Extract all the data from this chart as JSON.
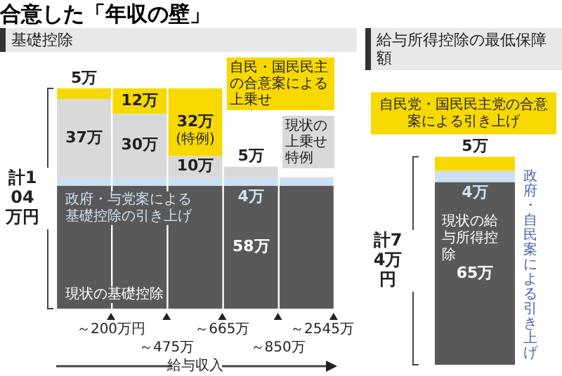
{
  "chart_data": [
    {
      "type": "bar",
      "title": "合意した「年収の壁」",
      "subtitle": "基礎控除",
      "categories": [
        "～200万円",
        "～475万",
        "～665万",
        "～850万",
        "～2545万"
      ],
      "stacked": true,
      "xlabel": "給与収入",
      "tick_labels": "x",
      "series": [
        {
          "name": "現状の基礎控除",
          "color": "#595959",
          "values": [
            58,
            58,
            58,
            58,
            58
          ],
          "value_labels": [
            null,
            null,
            null,
            "58万",
            null
          ]
        },
        {
          "name": "政府・与党案による基礎控除の引き上げ",
          "color": "#cde0f2",
          "values": [
            4,
            4,
            4,
            4,
            4
          ],
          "value_labels": [
            null,
            null,
            null,
            "4万",
            null
          ]
        },
        {
          "name": "現状の上乗せ特例",
          "color": "#d9d9d9",
          "values": [
            37,
            30,
            10,
            5,
            null
          ],
          "value_labels": [
            "37万",
            "30万",
            "10万",
            "5万",
            null
          ]
        },
        {
          "name": "自民・国民民主の合意案による上乗せ",
          "color": "#f7d900",
          "values": [
            5,
            12,
            32,
            null,
            null
          ],
          "value_labels": [
            "5万",
            "12万",
            "32万",
            null,
            null
          ]
        }
      ],
      "annotations": [
        "計104万円",
        {
          "text": "(特例)",
          "x": "～665万",
          "y": 80
        }
      ]
    },
    {
      "type": "bar",
      "title": "給与所得控除の最低保障額",
      "categories": [
        null
      ],
      "stacked": true,
      "tick_labels": false,
      "series": [
        {
          "name": "現状の給与所得控除",
          "color": "#595959",
          "values": [
            65
          ],
          "value_labels": [
            "65万"
          ]
        },
        {
          "name": "政府・自民案による引き上げ",
          "color": "#cde0f2",
          "values": [
            4
          ],
          "value_labels": [
            "4万"
          ]
        },
        {
          "name": "自民党・国民民主党の合意案による引き上げ",
          "color": "#f7d900",
          "values": [
            5
          ],
          "value_labels": [
            "5万"
          ]
        }
      ],
      "annotations": [
        "計74万円"
      ]
    }
  ]
}
